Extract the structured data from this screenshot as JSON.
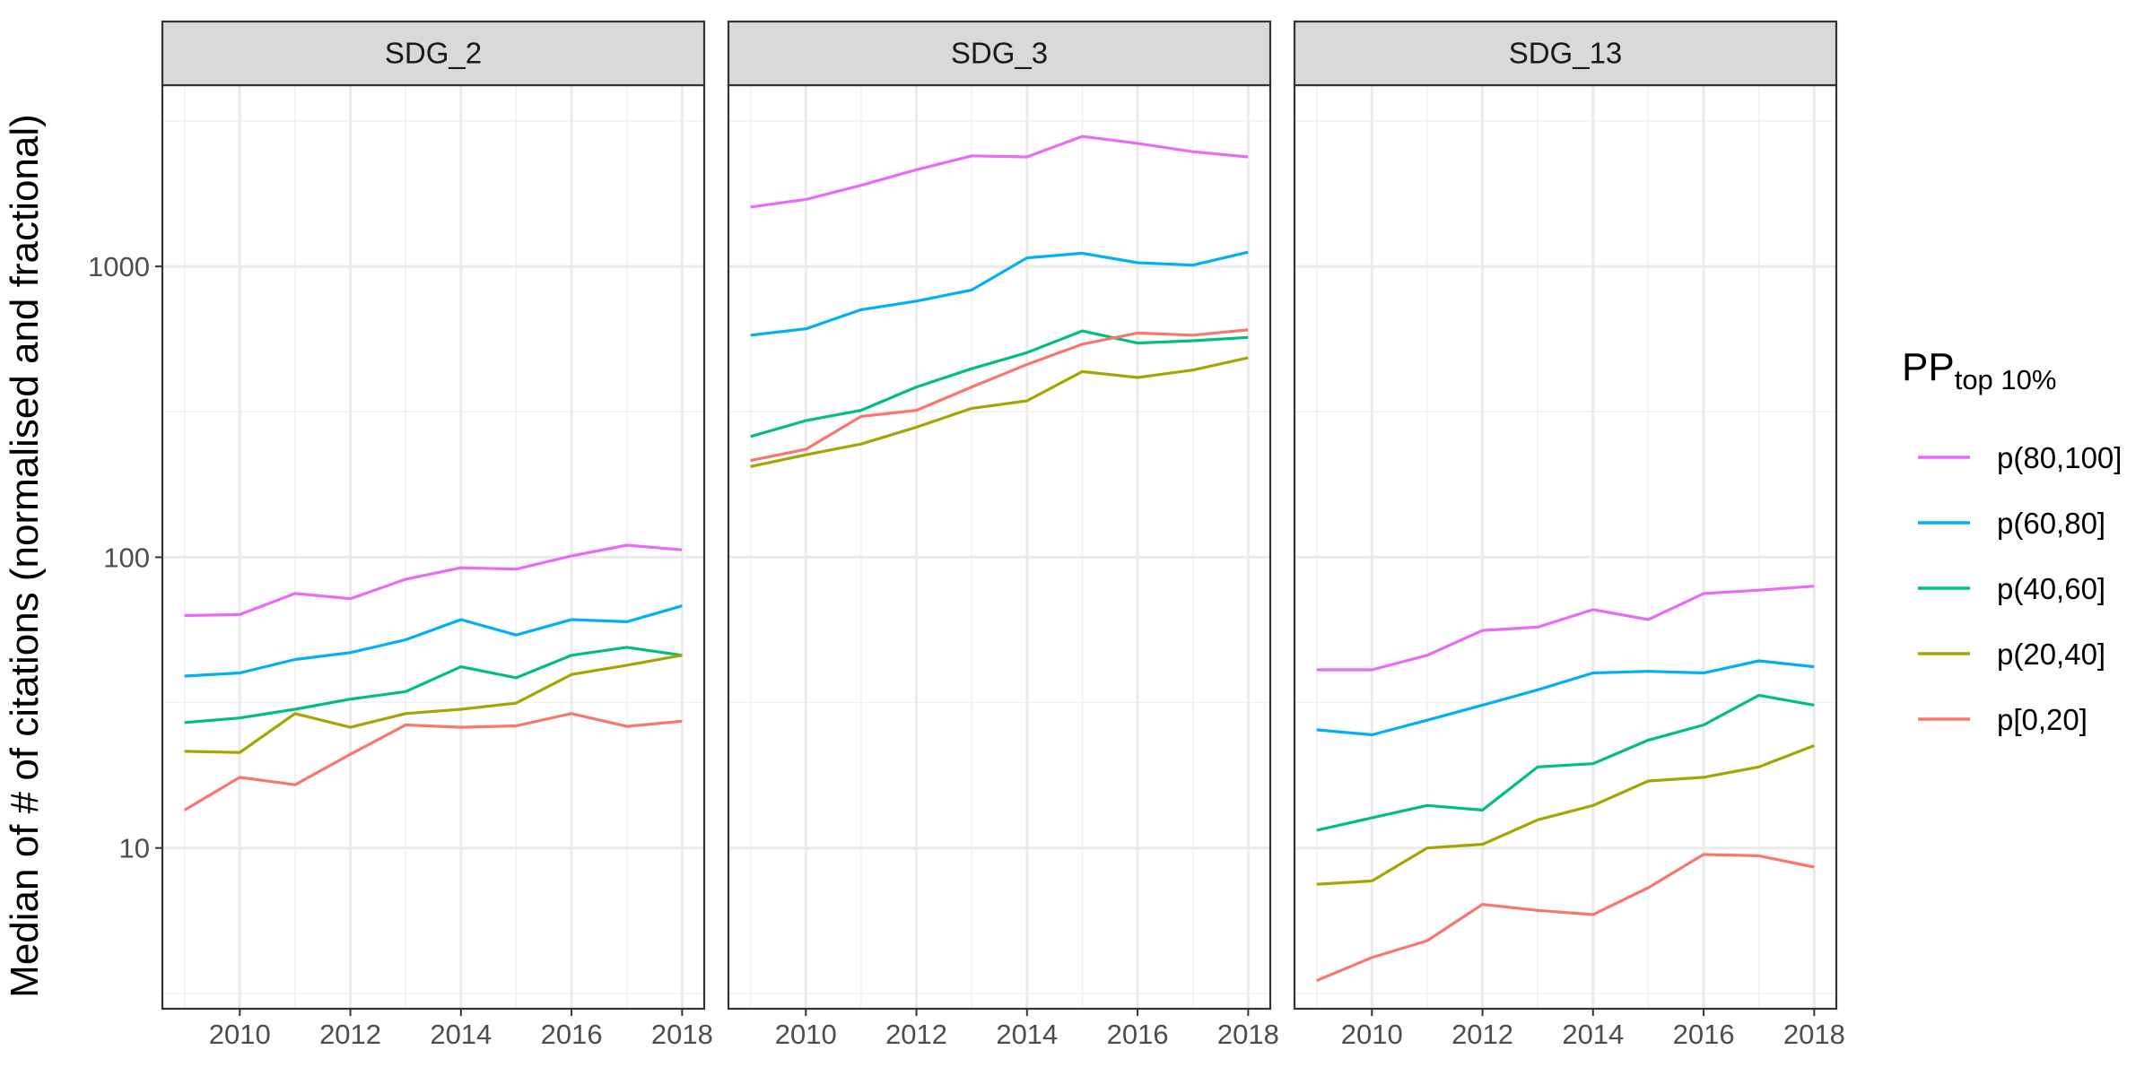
{
  "chart_data": {
    "type": "line",
    "ylabel": "Median of # of citations (normalised and fractional)",
    "xlabel": "",
    "y_scale": "log10",
    "ylim": [
      2.8,
      4200
    ],
    "xlim": [
      2008.6,
      2018.4
    ],
    "x": [
      2009,
      2010,
      2011,
      2012,
      2013,
      2014,
      2015,
      2016,
      2017,
      2018
    ],
    "x_ticks": [
      2010,
      2012,
      2014,
      2016,
      2018
    ],
    "y_ticks": [
      10,
      100,
      1000
    ],
    "y_tick_labels": [
      "10",
      "100",
      "1000"
    ],
    "grid": true,
    "legend_position": "right",
    "legend": {
      "title_main": "PP",
      "title_sub": "top 10%",
      "entries": [
        "p(80,100]",
        "p(60,80]",
        "p(40,60]",
        "p(20,40]",
        "p[0,20]"
      ]
    },
    "series_colors": [
      "#E76BF3",
      "#00B0F6",
      "#00BF7D",
      "#A3A500",
      "#F8766D"
    ],
    "panels": [
      {
        "title": "SDG_2",
        "series": [
          {
            "name": "p(80,100]",
            "values": [
              63,
              63.5,
              75,
              72,
              84,
              92,
              91,
              101,
              110,
              106
            ]
          },
          {
            "name": "p(60,80]",
            "values": [
              39,
              40,
              44.5,
              47,
              52,
              61,
              54,
              61,
              60,
              68
            ]
          },
          {
            "name": "p(40,60]",
            "values": [
              27,
              28,
              30,
              32.5,
              34.5,
              42,
              38.5,
              46,
              49,
              46
            ]
          },
          {
            "name": "p(20,40]",
            "values": [
              21.5,
              21.3,
              29,
              26,
              29,
              30,
              31.5,
              39.5,
              42.5,
              46
            ]
          },
          {
            "name": "p[0,20]",
            "values": [
              13.5,
              17.5,
              16.5,
              21,
              26.5,
              26,
              26.3,
              29,
              26.2,
              27.3
            ]
          }
        ]
      },
      {
        "title": "SDG_3",
        "series": [
          {
            "name": "p(80,100]",
            "values": [
              1600,
              1700,
              1900,
              2150,
              2400,
              2380,
              2800,
              2650,
              2480,
              2380
            ]
          },
          {
            "name": "p(60,80]",
            "values": [
              580,
              610,
              710,
              760,
              830,
              1070,
              1110,
              1030,
              1010,
              1120
            ]
          },
          {
            "name": "p(40,60]",
            "values": [
              260,
              295,
              320,
              385,
              445,
              505,
              600,
              545,
              555,
              570
            ]
          },
          {
            "name": "p(20,40]",
            "values": [
              205,
              225,
              245,
              280,
              325,
              345,
              435,
              415,
              440,
              485
            ]
          },
          {
            "name": "p[0,20]",
            "values": [
              215,
              235,
              305,
              320,
              385,
              460,
              540,
              590,
              580,
              605
            ]
          }
        ]
      },
      {
        "title": "SDG_13",
        "series": [
          {
            "name": "p(80,100]",
            "values": [
              41,
              41,
              46,
              56,
              57.5,
              66,
              61,
              75,
              77,
              79.5
            ]
          },
          {
            "name": "p(60,80]",
            "values": [
              25.5,
              24.5,
              27.5,
              31,
              35,
              40,
              40.5,
              40,
              44,
              42
            ]
          },
          {
            "name": "p(40,60]",
            "values": [
              11.5,
              12.7,
              14,
              13.5,
              19,
              19.5,
              23.5,
              26.5,
              33.5,
              31
            ]
          },
          {
            "name": "p(20,40]",
            "values": [
              7.5,
              7.7,
              10,
              10.3,
              12.5,
              14,
              17,
              17.5,
              19,
              22.5
            ]
          },
          {
            "name": "p[0,20]",
            "values": [
              3.5,
              4.2,
              4.8,
              6.4,
              6.1,
              5.9,
              7.3,
              9.5,
              9.4,
              8.6
            ]
          }
        ]
      }
    ]
  }
}
